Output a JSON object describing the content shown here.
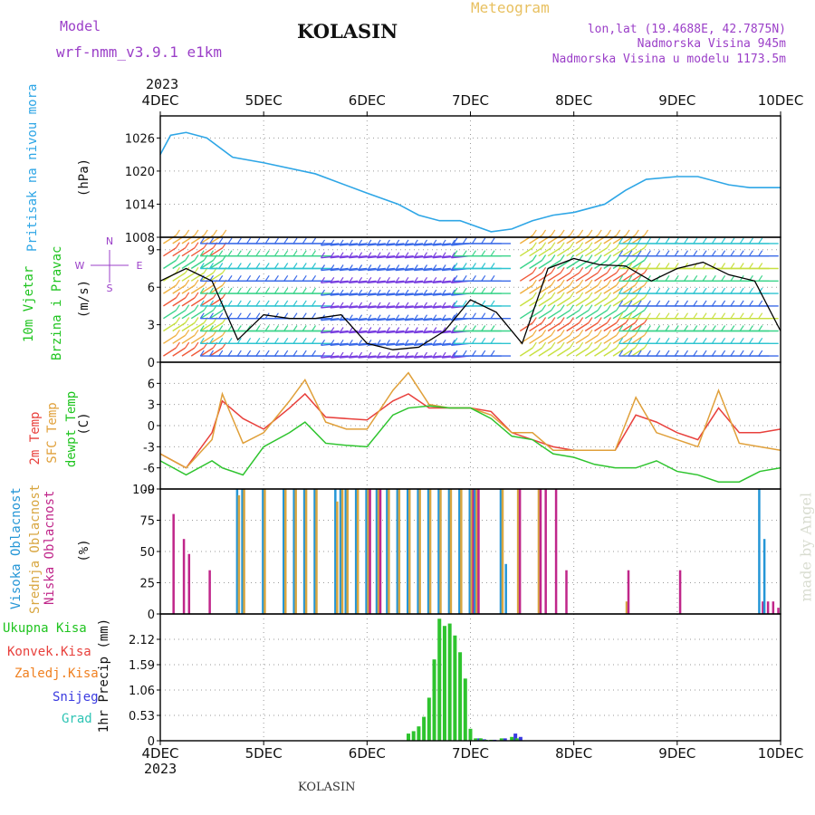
{
  "header": {
    "model_label": "Model",
    "model_name": "wrf-nmm_v3.9.1 e1km",
    "station": "KOLASIN",
    "meteogram": "Meteogram",
    "lonlat": "lon,lat (19.4688E, 42.7875N)",
    "elev": "Nadmorska Visina 945m",
    "elev_model": "Nadmorska Visina u modelu 1173.5m",
    "footer_station": "KOLASIN",
    "watermark": "made by Angel"
  },
  "colors": {
    "pressure": "#2ea6e6",
    "wind_black": "#000000",
    "temp2m": "#e8403c",
    "sfc": "#e0a03a",
    "dew": "#2ec42e",
    "high": "#2596d6",
    "mid": "#d8a640",
    "low": "#c0268a",
    "total": "#2ec42e",
    "conv": "#e8403c",
    "frozen": "#f08020",
    "snow": "#3a3ae0",
    "grad": "#2ec4b4",
    "label_purple": "#9b3fc8",
    "label_gold": "#e8c060"
  },
  "axes": {
    "x_year": "2023",
    "x_ticks": [
      "4DEC",
      "5DEC",
      "6DEC",
      "7DEC",
      "8DEC",
      "9DEC",
      "10DEC"
    ]
  },
  "panels": {
    "pressure": {
      "title": "Pritisak na nivou mora",
      "unit": "(hPa)",
      "ticks": [
        "1026",
        "1020",
        "1014",
        "1008"
      ]
    },
    "wind": {
      "title1": "10m Vjetar",
      "title2": "Brzina i Pravac",
      "unit": "(m/s)",
      "ticks": [
        "9",
        "6",
        "3",
        "0"
      ],
      "compass_s": "S",
      "compass_w": "W",
      "compass_e": "E",
      "compass_n": "N"
    },
    "temp": {
      "t1": "2m Temp",
      "t2": "SFC Temp",
      "t3": "dewpt Temp",
      "unit": "(C)",
      "ticks": [
        "6",
        "3",
        "0",
        "-3",
        "-6",
        "-9"
      ]
    },
    "cloud": {
      "c1": "Visoka Oblacnost",
      "c2": "Srednja Oblacnost",
      "c3": "Niska Oblacnost",
      "unit": "(%)",
      "ticks": [
        "100",
        "75",
        "50",
        "25",
        "0"
      ]
    },
    "precip": {
      "ylabel": "1hr Precip (mm)",
      "ticks": [
        "2.12",
        "1.59",
        "1.06",
        "0.53",
        "0"
      ],
      "legend": [
        "Ukupna Kisa",
        "Konvek.Kisa",
        "Zaledj.Kisa",
        "Snijeg",
        "Grad"
      ]
    }
  },
  "chart_data": [
    {
      "type": "line",
      "title": "Pritisak na nivou mora",
      "ylabel": "(hPa)",
      "ylim": [
        1008,
        1030
      ],
      "x": [
        0,
        0.1,
        0.25,
        0.45,
        0.7,
        1.0,
        1.5,
        2.0,
        2.3,
        2.5,
        2.7,
        2.9,
        3.2,
        3.4,
        3.6,
        3.8,
        4.0,
        4.3,
        4.5,
        4.7,
        5.0,
        5.2,
        5.5,
        5.7,
        6.0
      ],
      "series": [
        {
          "values": [
            1023,
            1026.5,
            1027,
            1026,
            1022.5,
            1021.5,
            1019.5,
            1016,
            1014,
            1012,
            1011,
            1011,
            1009,
            1009.5,
            1011,
            1012,
            1012.5,
            1014,
            1016.5,
            1018.5,
            1019,
            1019,
            1017.5,
            1017,
            1017
          ]
        }
      ]
    },
    {
      "type": "line",
      "title": "10m Vjetar Brzina i Pravac",
      "ylabel": "(m/s)",
      "ylim": [
        0,
        10
      ],
      "x": [
        0,
        0.25,
        0.5,
        0.75,
        1.0,
        1.25,
        1.5,
        1.75,
        2.0,
        2.25,
        2.5,
        2.75,
        3.0,
        3.25,
        3.5,
        3.75,
        4.0,
        4.25,
        4.5,
        4.75,
        5.0,
        5.25,
        5.5,
        5.75,
        6.0
      ],
      "series": [
        {
          "values": [
            6.5,
            7.5,
            6.5,
            1.8,
            3.8,
            3.5,
            3.5,
            3.8,
            1.5,
            1.0,
            1.2,
            2.5,
            5.0,
            4.0,
            1.5,
            7.5,
            8.3,
            7.8,
            7.7,
            6.5,
            7.5,
            8.0,
            7.0,
            6.5,
            2.5
          ]
        }
      ]
    },
    {
      "type": "line",
      "title": "2m Temp / SFC Temp / dewpt Temp",
      "ylabel": "(C)",
      "ylim": [
        -9,
        9
      ],
      "x": [
        0,
        0.25,
        0.5,
        0.6,
        0.8,
        1.0,
        1.25,
        1.4,
        1.6,
        1.8,
        2.0,
        2.25,
        2.4,
        2.6,
        2.8,
        3.0,
        3.2,
        3.4,
        3.6,
        3.8,
        4.0,
        4.2,
        4.4,
        4.6,
        4.8,
        5.0,
        5.2,
        5.4,
        5.6,
        5.8,
        6.0
      ],
      "series": [
        {
          "name": "2m Temp",
          "values": [
            -4,
            -6,
            -1,
            3.5,
            1,
            -0.5,
            2.5,
            4.5,
            1.2,
            1.0,
            0.8,
            3.5,
            4.5,
            2.5,
            2.5,
            2.5,
            2.0,
            -1,
            -2,
            -3,
            -3.5,
            -3.5,
            -3.5,
            1.5,
            0.5,
            -1,
            -2,
            2.5,
            -1,
            -1,
            -0.5
          ]
        },
        {
          "name": "SFC Temp",
          "values": [
            -4,
            -6,
            -2,
            4.5,
            -2.5,
            -1,
            3.5,
            6.5,
            0.5,
            -0.5,
            -0.5,
            5,
            7.5,
            3,
            2.5,
            2.5,
            1.5,
            -1,
            -1,
            -3.5,
            -3.5,
            -3.5,
            -3.5,
            4,
            -1,
            -2,
            -3,
            5,
            -2.5,
            -3,
            -3.5
          ]
        },
        {
          "name": "dewpt Temp",
          "values": [
            -5,
            -7,
            -5,
            -6,
            -7,
            -3,
            -1,
            0.5,
            -2.5,
            -2.8,
            -3,
            1.5,
            2.5,
            2.8,
            2.5,
            2.5,
            1,
            -1.5,
            -2,
            -4,
            -4.5,
            -5.5,
            -6,
            -6,
            -5,
            -6.5,
            -7,
            -8,
            -8,
            -6.5,
            -6
          ]
        }
      ]
    },
    {
      "type": "bar",
      "title": "Visoka / Srednja / Niska Oblacnost",
      "ylabel": "(%)",
      "ylim": [
        0,
        100
      ],
      "x": [
        0.1,
        0.2,
        0.25,
        0.45,
        0.75,
        0.8,
        1.0,
        1.2,
        1.3,
        1.4,
        1.5,
        1.6,
        1.7,
        1.75,
        1.8,
        1.9,
        2.0,
        2.1,
        2.2,
        2.3,
        2.4,
        2.5,
        2.6,
        2.7,
        2.8,
        2.9,
        3.0,
        3.05,
        3.3,
        3.35,
        3.45,
        3.65,
        3.7,
        3.8,
        3.9,
        4.0,
        4.5,
        5.0,
        5.8,
        5.85,
        5.9,
        5.95
      ],
      "series": [
        {
          "name": "Visoka Oblacnost",
          "values": [
            0,
            0,
            0,
            0,
            100,
            100,
            100,
            100,
            100,
            100,
            100,
            0,
            100,
            100,
            100,
            100,
            100,
            100,
            100,
            100,
            100,
            100,
            100,
            100,
            100,
            100,
            100,
            100,
            100,
            40,
            0,
            0,
            0,
            0,
            0,
            0,
            0,
            0,
            100,
            60,
            0,
            0
          ]
        },
        {
          "name": "Srednja Oblacnost",
          "values": [
            0,
            0,
            0,
            0,
            95,
            100,
            100,
            100,
            100,
            100,
            100,
            0,
            90,
            100,
            100,
            100,
            100,
            100,
            100,
            100,
            100,
            100,
            100,
            100,
            100,
            100,
            100,
            100,
            100,
            0,
            100,
            100,
            0,
            0,
            0,
            0,
            10,
            0,
            0,
            0,
            0,
            0
          ]
        },
        {
          "name": "Niska Oblacnost",
          "values": [
            80,
            60,
            48,
            35,
            0,
            0,
            0,
            0,
            0,
            0,
            0,
            0,
            0,
            0,
            0,
            0,
            100,
            100,
            0,
            0,
            0,
            0,
            0,
            0,
            0,
            0,
            100,
            100,
            0,
            0,
            100,
            100,
            100,
            100,
            35,
            0,
            35,
            35,
            10,
            10,
            10,
            5
          ]
        }
      ]
    },
    {
      "type": "bar",
      "title": "1hr Precip (mm)",
      "ylabel": "1hr Precip (mm)",
      "ylim": [
        0,
        2.65
      ],
      "x": [
        2.4,
        2.45,
        2.5,
        2.55,
        2.6,
        2.65,
        2.7,
        2.75,
        2.8,
        2.85,
        2.9,
        2.95,
        3.0,
        3.05,
        3.1,
        3.15,
        3.2,
        3.3,
        3.4,
        3.45
      ],
      "series": [
        {
          "name": "Ukupna Kisa",
          "values": [
            0.15,
            0.2,
            0.3,
            0.5,
            0.9,
            1.7,
            2.55,
            2.4,
            2.45,
            2.2,
            1.85,
            1.3,
            0.25,
            0.05,
            0.05,
            0.02,
            0.02,
            0.05,
            0.08,
            0.05
          ]
        },
        {
          "name": "Snijeg",
          "values": [
            0,
            0,
            0,
            0,
            0,
            0,
            0,
            0,
            0,
            0,
            0,
            0,
            0,
            0.05,
            0.03,
            0,
            0.02,
            0.05,
            0.15,
            0.08
          ]
        }
      ]
    }
  ]
}
